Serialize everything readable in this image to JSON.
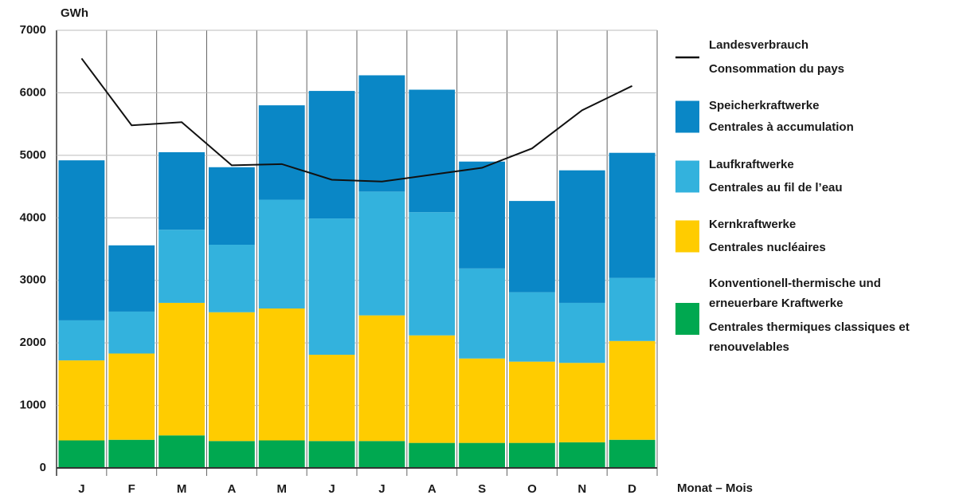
{
  "chart_data": {
    "type": "bar",
    "stacked": true,
    "y_label": "GWh",
    "x_label": "Monat – Mois",
    "categories": [
      "J",
      "F",
      "M",
      "A",
      "M",
      "J",
      "J",
      "A",
      "S",
      "O",
      "N",
      "D"
    ],
    "ylim": [
      0,
      7000
    ],
    "yticks": [
      0,
      1000,
      2000,
      3000,
      4000,
      5000,
      6000,
      7000
    ],
    "grid": true,
    "legend": "right",
    "series": [
      {
        "name": [
          "Landesverbrauch",
          "Consommation du pays"
        ],
        "type": "line",
        "color": "#111111",
        "values": [
          6550,
          5480,
          5530,
          4840,
          4860,
          4610,
          4580,
          4690,
          4800,
          5110,
          5720,
          6110
        ]
      },
      {
        "name": [
          "Speicherkraftwerke",
          "Centrales à accumulation"
        ],
        "type": "bar",
        "color": "#0a87c6",
        "values": [
          2560,
          1060,
          1240,
          1240,
          1510,
          2040,
          1860,
          1960,
          1710,
          1460,
          2120,
          2000
        ]
      },
      {
        "name": [
          "Laufkraftwerke",
          "Centrales au fil de l’eau"
        ],
        "type": "bar",
        "color": "#33b2dd",
        "values": [
          640,
          670,
          1170,
          1080,
          1740,
          2180,
          1980,
          1970,
          1440,
          1110,
          960,
          1010
        ]
      },
      {
        "name": [
          "Kernkraftwerke",
          "Centrales nucléaires"
        ],
        "type": "bar",
        "color": "#ffcc00",
        "values": [
          1280,
          1380,
          2120,
          2060,
          2110,
          1380,
          2010,
          1720,
          1350,
          1300,
          1270,
          1580
        ]
      },
      {
        "name": [
          "Konventionell-thermische und",
          "erneuerbare Kraftwerke",
          "Centrales thermiques classiques et",
          "renouvelables"
        ],
        "type": "bar",
        "color": "#00a850",
        "values": [
          440,
          450,
          520,
          430,
          440,
          430,
          430,
          400,
          400,
          400,
          410,
          450
        ]
      }
    ]
  }
}
